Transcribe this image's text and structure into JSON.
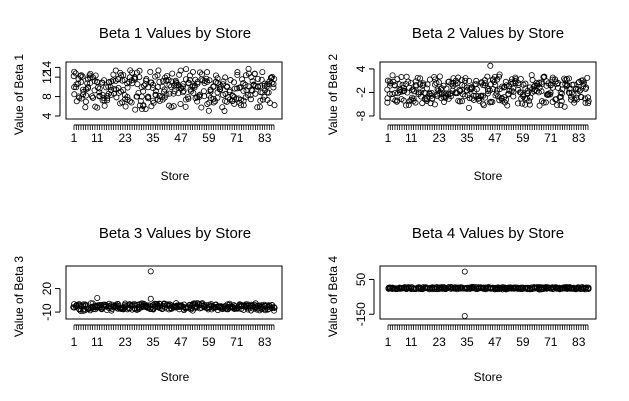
{
  "chart_data": [
    {
      "type": "scatter",
      "title": "Beta 1 Values by Store",
      "xlabel": "Store",
      "ylabel": "Value of Beta 1",
      "xticks": [
        "1",
        "11",
        "23",
        "35",
        "47",
        "59",
        "71",
        "83"
      ],
      "yticks": [
        "4",
        "8",
        "12",
        "14"
      ],
      "ylim": [
        4,
        14.5
      ],
      "xlim": [
        1,
        87
      ],
      "n_stores": 87,
      "per_store_range": [
        5,
        14
      ],
      "center": 9.5,
      "outliers": []
    },
    {
      "type": "scatter",
      "title": "Beta 2 Values by Store",
      "xlabel": "Store",
      "ylabel": "Value of Beta 2",
      "xticks": [
        "1",
        "11",
        "23",
        "35",
        "47",
        "59",
        "71",
        "83"
      ],
      "yticks": [
        "-8",
        "-2",
        "4"
      ],
      "ylim": [
        -8,
        5
      ],
      "xlim": [
        1,
        87
      ],
      "n_stores": 87,
      "per_store_range": [
        -6,
        3
      ],
      "center": -1,
      "outliers": [
        {
          "x": 45,
          "y": 4.8
        }
      ]
    },
    {
      "type": "scatter",
      "title": "Beta 3 Values by Store",
      "xlabel": "Store",
      "ylabel": "Value of Beta 3",
      "xticks": [
        "1",
        "11",
        "23",
        "35",
        "47",
        "59",
        "71",
        "83"
      ],
      "yticks": [
        "-10",
        "20"
      ],
      "ylim": [
        -15,
        45
      ],
      "xlim": [
        1,
        87
      ],
      "n_stores": 87,
      "per_store_range": [
        -9,
        2
      ],
      "center": -4,
      "outliers": [
        {
          "x": 34,
          "y": 42
        },
        {
          "x": 34,
          "y": 7
        },
        {
          "x": 11,
          "y": 8
        }
      ]
    },
    {
      "type": "scatter",
      "title": "Beta 4 Values by Store",
      "xlabel": "Store",
      "ylabel": "Value of Beta 4",
      "xticks": [
        "1",
        "11",
        "23",
        "35",
        "47",
        "59",
        "71",
        "83"
      ],
      "yticks": [
        "-150",
        "50"
      ],
      "ylim": [
        -160,
        110
      ],
      "xlim": [
        1,
        87
      ],
      "n_stores": 87,
      "per_store_range": [
        -8,
        8
      ],
      "center": 0,
      "outliers": [
        {
          "x": 34,
          "y": 95
        },
        {
          "x": 34,
          "y": -160
        }
      ]
    }
  ]
}
